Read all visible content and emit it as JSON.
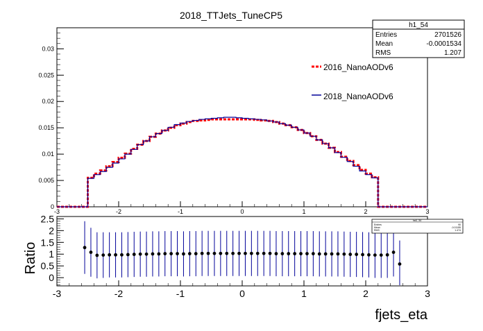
{
  "title": "2018_TTJets_TuneCP5",
  "stats_box": {
    "name": "h1_54",
    "rows": [
      {
        "label": "Entries",
        "value": "2701526"
      },
      {
        "label": "Mean",
        "value": "-0.0001534"
      },
      {
        "label": "RMS",
        "value": "1.207"
      }
    ]
  },
  "mini_stats_box": {
    "name": "hst1_54",
    "rows": [
      {
        "label": "Entries",
        "value": "90"
      },
      {
        "label": "Mean",
        "value": "-0.01155"
      },
      {
        "label": "RMS",
        "value": "1.474"
      }
    ]
  },
  "legend": [
    {
      "label": "2016_NanoAODv6",
      "color": "#ff0000",
      "style": "dashed"
    },
    {
      "label": "2018_NanoAODv6",
      "color": "#000099",
      "style": "solid"
    }
  ],
  "colors": {
    "series_2016": "#ff0000",
    "series_2018": "#000099",
    "ratio_marker": "#000000",
    "ratio_error": "#000099"
  },
  "chart_data": [
    {
      "type": "line",
      "style": "step-histogram",
      "title": "2018_TTJets_TuneCP5",
      "xlim": [
        -3,
        3
      ],
      "ylim": [
        0,
        0.034
      ],
      "y_ticks": [
        "0",
        "0.005",
        "0.01",
        "0.015",
        "0.02",
        "0.025",
        "0.03"
      ],
      "x_ticks": [
        "-3",
        "-2",
        "-1",
        "0",
        "1",
        "2",
        "3"
      ],
      "grid": false,
      "legend_position": "top-right",
      "x": [
        -2.95,
        -2.85,
        -2.75,
        -2.65,
        -2.55,
        -2.45,
        -2.35,
        -2.25,
        -2.15,
        -2.05,
        -1.95,
        -1.85,
        -1.75,
        -1.65,
        -1.55,
        -1.45,
        -1.35,
        -1.25,
        -1.15,
        -1.05,
        -0.95,
        -0.85,
        -0.75,
        -0.65,
        -0.55,
        -0.45,
        -0.35,
        -0.25,
        -0.15,
        -0.05,
        0.05,
        0.15,
        0.25,
        0.35,
        0.45,
        0.55,
        0.65,
        0.75,
        0.85,
        0.95,
        1.05,
        1.15,
        1.25,
        1.35,
        1.45,
        1.55,
        1.65,
        1.75,
        1.85,
        1.95,
        2.05,
        2.15,
        2.25,
        2.35,
        2.45,
        2.55,
        2.65,
        2.75,
        2.85,
        2.95
      ],
      "series": [
        {
          "name": "2016_NanoAODv6",
          "values": [
            0,
            0,
            0,
            0,
            0,
            0.0055,
            0.0063,
            0.0069,
            0.0077,
            0.0085,
            0.0093,
            0.0101,
            0.011,
            0.0118,
            0.0125,
            0.0133,
            0.0139,
            0.0145,
            0.015,
            0.0155,
            0.0158,
            0.0161,
            0.0163,
            0.0164,
            0.0165,
            0.0166,
            0.0166,
            0.0166,
            0.0166,
            0.0166,
            0.0166,
            0.0166,
            0.0165,
            0.0164,
            0.0163,
            0.0161,
            0.0158,
            0.0155,
            0.0151,
            0.0146,
            0.014,
            0.0134,
            0.0127,
            0.012,
            0.0112,
            0.0104,
            0.0095,
            0.0087,
            0.0079,
            0.007,
            0.0063,
            0.0056,
            0,
            0,
            0,
            0,
            0,
            0,
            0,
            0
          ]
        },
        {
          "name": "2018_NanoAODv6",
          "values": [
            0,
            0,
            0,
            0,
            0,
            0.0054,
            0.0061,
            0.0067,
            0.0075,
            0.0083,
            0.0091,
            0.01,
            0.0109,
            0.0118,
            0.0125,
            0.0133,
            0.0139,
            0.0145,
            0.0151,
            0.0156,
            0.0159,
            0.0162,
            0.0164,
            0.0166,
            0.0167,
            0.0168,
            0.0169,
            0.017,
            0.017,
            0.0169,
            0.0168,
            0.0167,
            0.0166,
            0.0165,
            0.0163,
            0.0161,
            0.0158,
            0.0155,
            0.0151,
            0.0146,
            0.014,
            0.0134,
            0.0127,
            0.012,
            0.0112,
            0.0103,
            0.0094,
            0.0086,
            0.0077,
            0.0068,
            0.0061,
            0.0055,
            0,
            0,
            0,
            0,
            0,
            0,
            0,
            0
          ]
        }
      ]
    },
    {
      "type": "scatter",
      "style": "points-with-errorbars",
      "xlabel": "fjets_eta",
      "ylabel": "Ratio",
      "xlim": [
        -3,
        3
      ],
      "ylim": [
        -0.35,
        2.6
      ],
      "y_ticks": [
        "0",
        "0.5",
        "1",
        "1.5",
        "2",
        "2.5"
      ],
      "x_ticks": [
        "-3",
        "-2",
        "-1",
        "0",
        "1",
        "2",
        "3"
      ],
      "x": [
        -2.55,
        -2.45,
        -2.35,
        -2.25,
        -2.15,
        -2.05,
        -1.95,
        -1.85,
        -1.75,
        -1.65,
        -1.55,
        -1.45,
        -1.35,
        -1.25,
        -1.15,
        -1.05,
        -0.95,
        -0.85,
        -0.75,
        -0.65,
        -0.55,
        -0.45,
        -0.35,
        -0.25,
        -0.15,
        -0.05,
        0.05,
        0.15,
        0.25,
        0.35,
        0.45,
        0.55,
        0.65,
        0.75,
        0.85,
        0.95,
        1.05,
        1.15,
        1.25,
        1.35,
        1.45,
        1.55,
        1.65,
        1.75,
        1.85,
        1.95,
        2.05,
        2.15,
        2.25,
        2.35,
        2.45,
        2.55
      ],
      "values": [
        1.28,
        1.08,
        0.95,
        0.96,
        0.97,
        0.97,
        0.97,
        0.98,
        0.99,
        1.0,
        1.0,
        1.01,
        1.01,
        1.02,
        1.02,
        1.02,
        1.01,
        1.02,
        1.02,
        1.03,
        1.03,
        1.03,
        1.03,
        1.03,
        1.03,
        1.03,
        1.03,
        1.03,
        1.03,
        1.03,
        1.03,
        1.02,
        1.02,
        1.02,
        1.02,
        1.02,
        1.02,
        1.02,
        1.01,
        1.01,
        1.01,
        1.01,
        1.0,
        0.99,
        0.99,
        0.98,
        0.97,
        0.96,
        0.96,
        0.97,
        1.08,
        0.58
      ],
      "errors": [
        1.12,
        1.04,
        0.98,
        0.97,
        0.96,
        0.96,
        0.96,
        0.96,
        0.96,
        0.96,
        0.96,
        0.96,
        0.96,
        0.96,
        0.96,
        0.96,
        0.96,
        0.96,
        0.96,
        0.96,
        0.96,
        0.96,
        0.96,
        0.96,
        0.96,
        0.96,
        0.96,
        0.96,
        0.96,
        0.96,
        0.96,
        0.96,
        0.96,
        0.96,
        0.96,
        0.96,
        0.96,
        0.96,
        0.96,
        0.96,
        0.96,
        0.96,
        0.96,
        0.96,
        0.96,
        0.96,
        0.96,
        0.97,
        0.97,
        0.98,
        1.03,
        1.0
      ]
    }
  ]
}
